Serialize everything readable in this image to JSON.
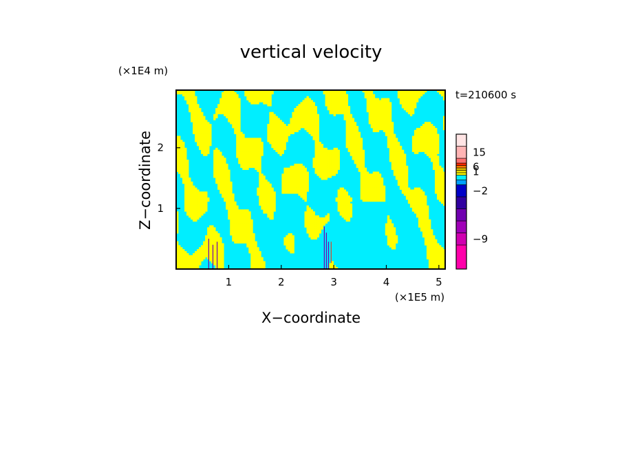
{
  "chart_data": {
    "type": "heatmap",
    "title": "vertical velocity",
    "xlabel": "X−coordinate",
    "ylabel": "Z−coordinate",
    "x_unit": "(×1E5 m)",
    "y_unit": "(×1E4 m)",
    "time_label": "t=210600 s",
    "xlim": [
      0,
      5.12
    ],
    "ylim": [
      0,
      2.95
    ],
    "x_ticks": [
      {
        "value": 1,
        "label": "1"
      },
      {
        "value": 2,
        "label": "2"
      },
      {
        "value": 3,
        "label": "3"
      },
      {
        "value": 4,
        "label": "4"
      },
      {
        "value": 5,
        "label": "5"
      }
    ],
    "y_ticks": [
      {
        "value": 1,
        "label": "1"
      },
      {
        "value": 2,
        "label": "2"
      }
    ],
    "colorbar": {
      "levels": [
        {
          "color": "#ff00aa",
          "label": ""
        },
        {
          "color": "#d000b0",
          "label": "−9"
        },
        {
          "color": "#a000b8",
          "label": ""
        },
        {
          "color": "#7000b0",
          "label": ""
        },
        {
          "color": "#3000a0",
          "label": ""
        },
        {
          "color": "#0000c8",
          "label": "−2"
        },
        {
          "color": "#00a0ff",
          "label": ""
        },
        {
          "color": "#00eeff",
          "label": ""
        },
        {
          "color": "#ffff00",
          "label": ""
        },
        {
          "color": "#f0e000",
          "label": "1"
        },
        {
          "color": "#e0c000",
          "label": ""
        },
        {
          "color": "#ff7800",
          "label": "6"
        },
        {
          "color": "#ff2800",
          "label": ""
        },
        {
          "color": "#ff7070",
          "label": ""
        },
        {
          "color": "#ffb4b4",
          "label": "15"
        },
        {
          "color": "#ffe4e4",
          "label": ""
        }
      ]
    },
    "colors": {
      "negative": "#00eeff",
      "positive": "#ffff00",
      "strong_negative": "#7000b0",
      "strong_positive": "#ff2800"
    },
    "grid": false,
    "legend": "right"
  }
}
